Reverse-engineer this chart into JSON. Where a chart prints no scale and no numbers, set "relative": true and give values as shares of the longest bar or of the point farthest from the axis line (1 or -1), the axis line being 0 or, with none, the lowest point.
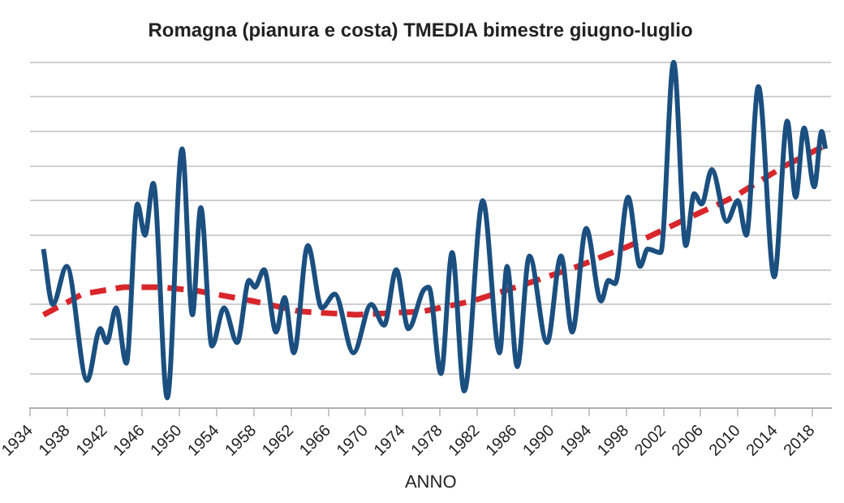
{
  "chart_data": {
    "type": "line",
    "title": "Romagna (pianura e costa) TMEDIA bimestre giugno-luglio",
    "xlabel": "ANNO",
    "relative": true,
    "xlim": [
      1934,
      2020
    ],
    "xticks": [
      1934,
      1938,
      1942,
      1946,
      1950,
      1954,
      1958,
      1962,
      1966,
      1970,
      1974,
      1978,
      1982,
      1986,
      1990,
      1994,
      1998,
      2002,
      2006,
      2010,
      2014,
      2018
    ],
    "grid": "y",
    "legend": false,
    "marker": "none",
    "tick_labels": "x",
    "series": [
      {
        "type": "line",
        "color": "#1b4f80",
        "line_style": "solid",
        "x": [
          1935.4,
          1936.4,
          1937.9,
          1940.1,
          1941.5,
          1942.2,
          1943.2,
          1944.3,
          1945.5,
          1946.3,
          1947.2,
          1948.7,
          1950.3,
          1951.4,
          1952.3,
          1953.5,
          1954.8,
          1956.2,
          1957.5,
          1958.1,
          1959.1,
          1960.4,
          1961.3,
          1962.3,
          1963.8,
          1965.3,
          1966.7,
          1968.7,
          1970.6,
          1972.0,
          1973.3,
          1974.6,
          1976.2,
          1976.8,
          1978.1,
          1979.3,
          1980.6,
          1982.6,
          1984.4,
          1985.2,
          1986.3,
          1987.6,
          1989.5,
          1991.0,
          1992.2,
          1993.7,
          1995.3,
          1996.1,
          1996.8,
          1998.2,
          1999.5,
          2000.3,
          2001.7,
          2003.1,
          2004.4,
          2005.3,
          2006.1,
          2007.2,
          2008.8,
          2010.0,
          2010.9,
          2012.2,
          2013.9,
          2015.3,
          2016.2,
          2017.1,
          2018.2,
          2019.0,
          2019.4
        ],
        "values": [
          0.46,
          0.3,
          0.41,
          0.08,
          0.23,
          0.19,
          0.29,
          0.13,
          0.59,
          0.5,
          0.65,
          0.03,
          0.75,
          0.27,
          0.58,
          0.18,
          0.29,
          0.19,
          0.37,
          0.35,
          0.4,
          0.22,
          0.32,
          0.16,
          0.47,
          0.29,
          0.33,
          0.16,
          0.3,
          0.24,
          0.4,
          0.23,
          0.34,
          0.35,
          0.1,
          0.45,
          0.05,
          0.6,
          0.16,
          0.41,
          0.12,
          0.44,
          0.19,
          0.44,
          0.22,
          0.52,
          0.31,
          0.37,
          0.36,
          0.61,
          0.41,
          0.46,
          0.45,
          1.0,
          0.47,
          0.62,
          0.59,
          0.69,
          0.54,
          0.6,
          0.5,
          0.93,
          0.38,
          0.83,
          0.61,
          0.81,
          0.64,
          0.8,
          0.75
        ]
      },
      {
        "type": "line",
        "color": "#d9262b",
        "line_style": "dashed",
        "x": [
          1935.4,
          1939.6,
          1944.0,
          1947.9,
          1951.8,
          1957.9,
          1962.9,
          1969.0,
          1976.2,
          1981.5,
          1987.3,
          1992.8,
          1998.4,
          2003.9,
          2009.5,
          2015.0,
          2019.4
        ],
        "values": [
          0.27,
          0.33,
          0.35,
          0.35,
          0.34,
          0.31,
          0.28,
          0.27,
          0.28,
          0.31,
          0.36,
          0.41,
          0.47,
          0.54,
          0.61,
          0.7,
          0.76
        ]
      }
    ]
  }
}
